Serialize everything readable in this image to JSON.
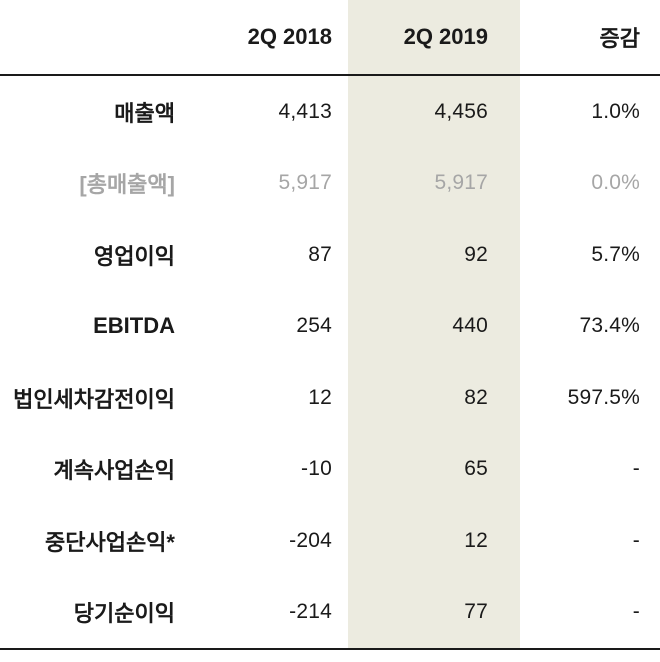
{
  "colors": {
    "highlight_column_bg": "#ecebe0",
    "text": "#1a1a1a",
    "muted_text": "#a6a6a6",
    "rule": "#1a1a1a"
  },
  "table": {
    "header": {
      "label": "",
      "c2018": "2Q 2018",
      "c2019": "2Q 2019",
      "change": "증감"
    },
    "rows": [
      {
        "label": "매출액",
        "v2018": "4,413",
        "v2019": "4,456",
        "change": "1.0%"
      },
      {
        "label": "[총매출액]",
        "v2018": "5,917",
        "v2019": "5,917",
        "change": "0.0%"
      },
      {
        "label": "영업이익",
        "v2018": "87",
        "v2019": "92",
        "change": "5.7%"
      },
      {
        "label": "EBITDA",
        "v2018": "254",
        "v2019": "440",
        "change": "73.4%"
      },
      {
        "label": "법인세차감전이익",
        "v2018": "12",
        "v2019": "82",
        "change": "597.5%"
      },
      {
        "label": "계속사업손익",
        "v2018": "-10",
        "v2019": "65",
        "change": "-"
      },
      {
        "label": "중단사업손익*",
        "v2018": "-204",
        "v2019": "12",
        "change": "-"
      },
      {
        "label": "당기순이익",
        "v2018": "-214",
        "v2019": "77",
        "change": "-"
      }
    ]
  },
  "chart_data": {
    "type": "table",
    "columns": [
      "",
      "2Q 2018",
      "2Q 2019",
      "증감"
    ],
    "rows": [
      [
        "매출액",
        4413,
        4456,
        "1.0%"
      ],
      [
        "[총매출액]",
        5917,
        5917,
        "0.0%"
      ],
      [
        "영업이익",
        87,
        92,
        "5.7%"
      ],
      [
        "EBITDA",
        254,
        440,
        "73.4%"
      ],
      [
        "법인세차감전이익",
        12,
        82,
        "597.5%"
      ],
      [
        "계속사업손익",
        -10,
        65,
        "-"
      ],
      [
        "중단사업손익*",
        -204,
        12,
        "-"
      ],
      [
        "당기순이익",
        -214,
        77,
        "-"
      ]
    ],
    "highlighted_column": "2Q 2019"
  }
}
